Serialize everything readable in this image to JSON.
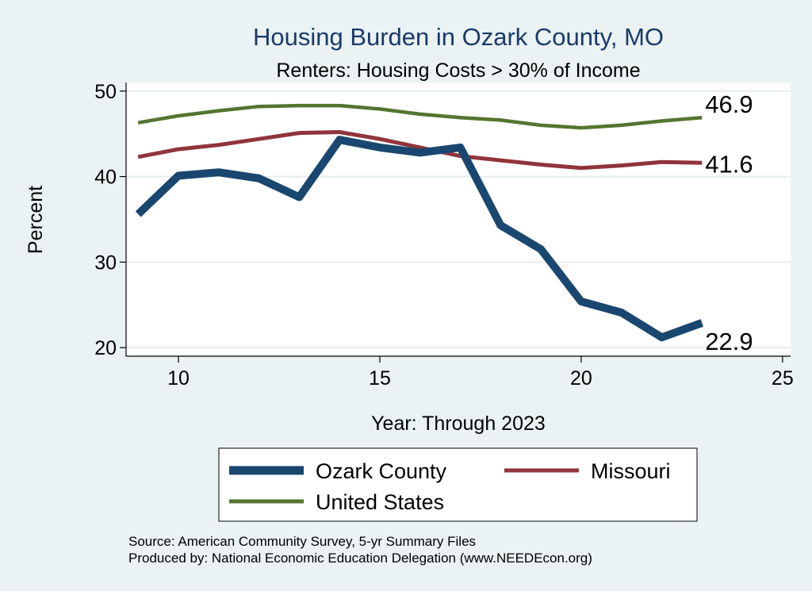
{
  "chart_data": {
    "type": "line",
    "title": "Housing Burden in Ozark County, MO",
    "subtitle": "Renters: Housing Costs > 30% of Income",
    "xlabel": "Year: Through 2023",
    "ylabel": "Percent",
    "xlim": [
      8.7,
      25.2
    ],
    "ylim": [
      19,
      51
    ],
    "xticks": [
      10,
      15,
      20,
      25
    ],
    "yticks": [
      20,
      30,
      40,
      50
    ],
    "grid": true,
    "legend_position": "bottom",
    "series": [
      {
        "name": "Ozark County",
        "color": "#1a476f",
        "x": [
          9,
          10,
          11,
          12,
          13,
          14,
          15,
          16,
          17,
          18,
          19,
          20,
          21,
          22,
          23
        ],
        "values": [
          35.6,
          40.1,
          40.5,
          39.8,
          37.6,
          44.3,
          43.4,
          42.8,
          43.4,
          34.3,
          31.5,
          25.4,
          24.1,
          21.2,
          22.9
        ],
        "end_label": "22.9"
      },
      {
        "name": "Missouri",
        "color": "#90353b",
        "x": [
          9,
          10,
          11,
          12,
          13,
          14,
          15,
          16,
          17,
          18,
          19,
          20,
          21,
          22,
          23
        ],
        "values": [
          42.3,
          43.2,
          43.7,
          44.4,
          45.1,
          45.2,
          44.4,
          43.4,
          42.4,
          41.9,
          41.4,
          41.0,
          41.3,
          41.7,
          41.6
        ],
        "end_label": "41.6"
      },
      {
        "name": "United States",
        "color": "#55752f",
        "x": [
          9,
          10,
          11,
          12,
          13,
          14,
          15,
          16,
          17,
          18,
          19,
          20,
          21,
          22,
          23
        ],
        "values": [
          46.3,
          47.1,
          47.7,
          48.2,
          48.3,
          48.3,
          47.9,
          47.3,
          46.9,
          46.6,
          46.0,
          45.7,
          46.0,
          46.5,
          46.9
        ],
        "end_label": "46.9"
      }
    ],
    "notes": [
      "Source: American Community Survey, 5-yr Summary Files",
      "Produced by: National Economic Education Delegation (www.NEEDEcon.org)"
    ]
  },
  "colors": {
    "background": "#eaf2f3",
    "plot_background": "#ffffff",
    "title": "#1a3a6a",
    "grid": "#e5eeee"
  }
}
